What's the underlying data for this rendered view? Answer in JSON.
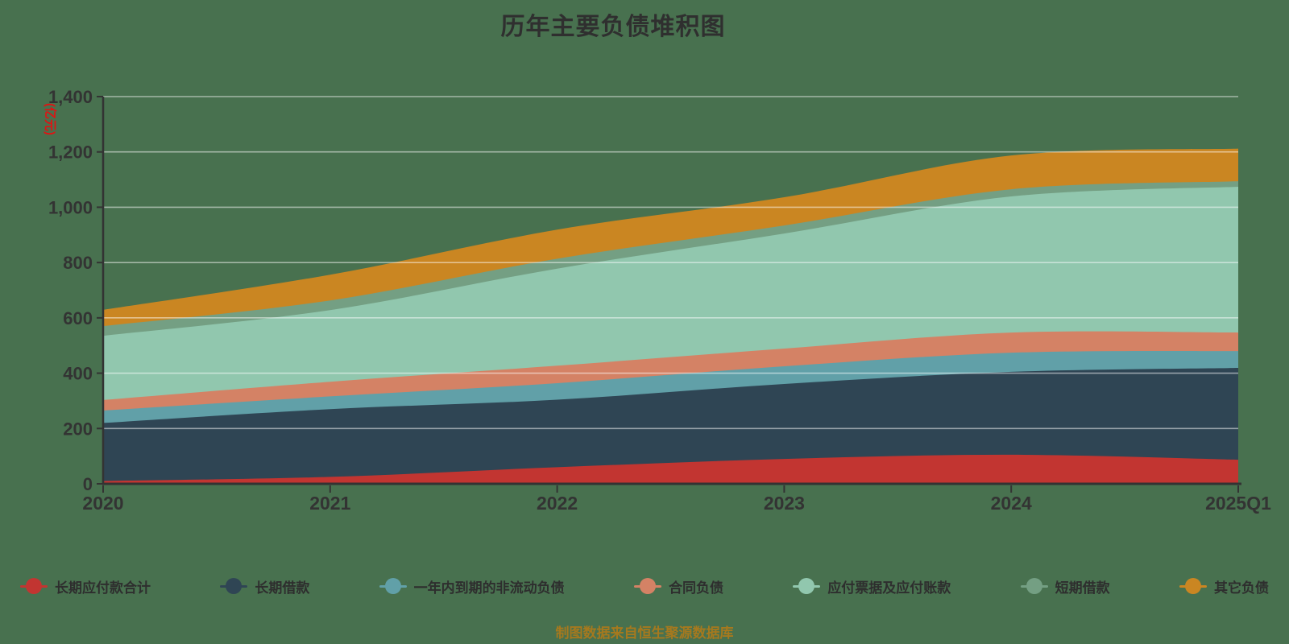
{
  "title": "历年主要负债堆积图",
  "y_axis_unit": "(亿元)",
  "footer": "制图数据来自恒生聚源数据库",
  "colors": {
    "background": "#48714F",
    "title_text": "#2f2f2f",
    "axis_text": "#333333",
    "axis_line": "#333333",
    "gridline": "rgba(255,255,255,0.5)",
    "unit_text": "#e01313",
    "footer_text": "#a6791e"
  },
  "chart_data": {
    "type": "area",
    "stacked": true,
    "smooth": true,
    "title": "历年主要负债堆积图",
    "ylabel": "(亿元)",
    "xlabel": "",
    "ylim": [
      0,
      1400
    ],
    "ytick_step": 200,
    "grid": true,
    "legend_position": "bottom",
    "categories": [
      "2020",
      "2021",
      "2022",
      "2023",
      "2024",
      "2025Q1"
    ],
    "series": [
      {
        "name": "长期应付款合计",
        "color": "#c23531",
        "values": [
          10,
          25,
          60,
          90,
          105,
          87
        ]
      },
      {
        "name": "长期借款",
        "color": "#2f4554",
        "values": [
          210,
          245,
          244,
          271,
          300,
          332
        ]
      },
      {
        "name": "一年内到期的非流动负债",
        "color": "#61a0a8",
        "values": [
          45,
          46,
          60,
          64,
          69,
          61
        ]
      },
      {
        "name": "合同负债",
        "color": "#d48265",
        "values": [
          38,
          53,
          63,
          64,
          73,
          67
        ]
      },
      {
        "name": "应付票据及应付账款",
        "color": "#91c7ae",
        "values": [
          232,
          259,
          351,
          416,
          492,
          527
        ]
      },
      {
        "name": "短期借款",
        "color": "#749f83",
        "values": [
          35,
          35,
          36,
          29,
          26,
          20
        ]
      },
      {
        "name": "其它负债",
        "color": "#ca8622",
        "values": [
          59,
          93,
          105,
          102,
          122,
          118
        ]
      }
    ]
  }
}
